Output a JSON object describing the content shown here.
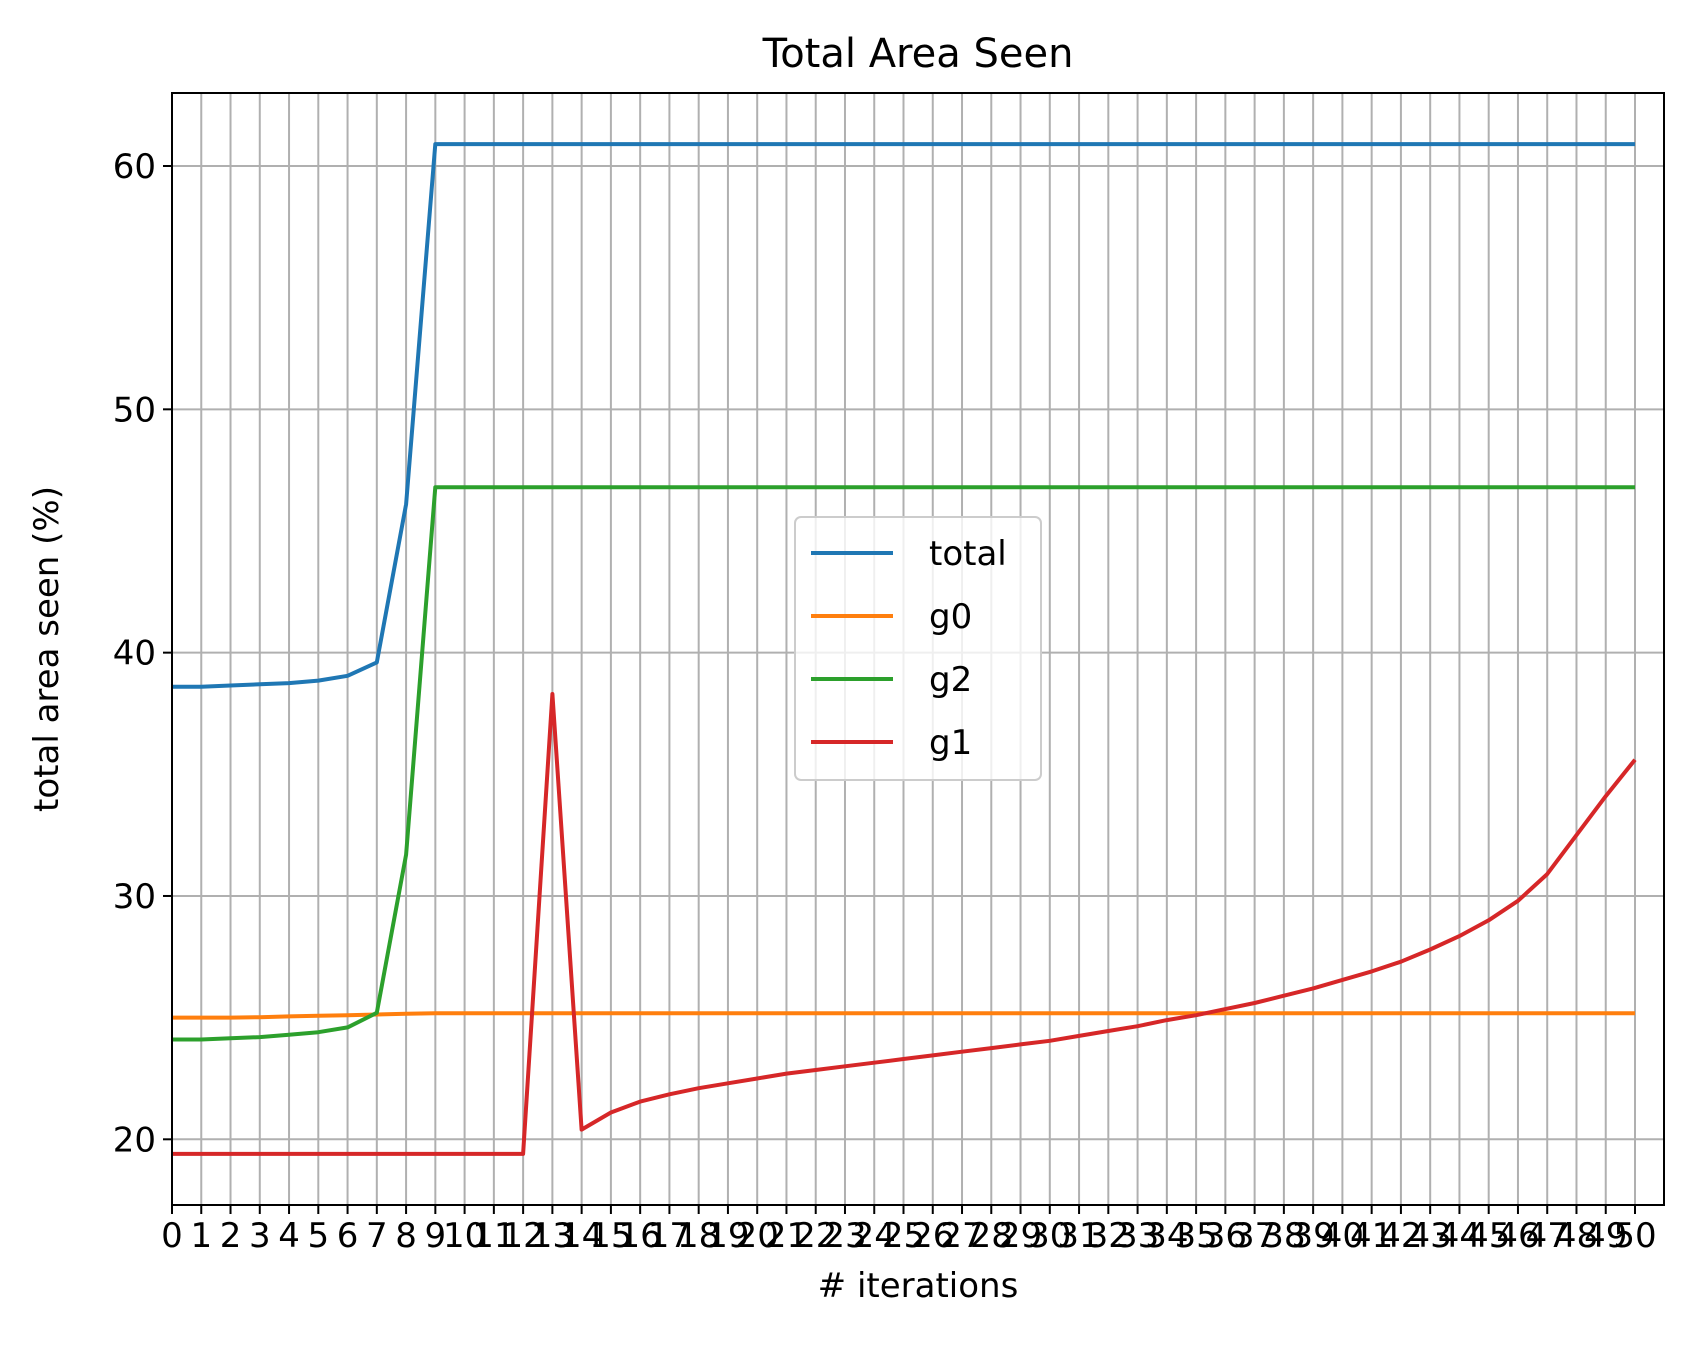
{
  "chart_data": {
    "type": "line",
    "title": "Total Area Seen",
    "xlabel": "# iterations",
    "ylabel": "total area seen (%)",
    "xlim": [
      0,
      50
    ],
    "ylim": [
      17.3,
      63
    ],
    "xticks": [
      0,
      1,
      2,
      3,
      4,
      5,
      6,
      7,
      8,
      9,
      10,
      11,
      12,
      13,
      14,
      15,
      16,
      17,
      18,
      19,
      20,
      21,
      22,
      23,
      24,
      25,
      26,
      27,
      28,
      29,
      30,
      31,
      32,
      33,
      34,
      35,
      36,
      37,
      38,
      39,
      40,
      41,
      42,
      43,
      44,
      45,
      46,
      47,
      48,
      49,
      50
    ],
    "yticks": [
      20,
      30,
      40,
      50,
      60
    ],
    "grid": true,
    "legend_position": "center",
    "x": [
      0,
      1,
      2,
      3,
      4,
      5,
      6,
      7,
      8,
      9,
      10,
      11,
      12,
      13,
      14,
      15,
      16,
      17,
      18,
      19,
      20,
      21,
      22,
      23,
      24,
      25,
      26,
      27,
      28,
      29,
      30,
      31,
      32,
      33,
      34,
      35,
      36,
      37,
      38,
      39,
      40,
      41,
      42,
      43,
      44,
      45,
      46,
      47,
      48,
      49,
      50
    ],
    "series": [
      {
        "name": "total",
        "color": "#1f77b4",
        "values": [
          38.6,
          38.6,
          38.65,
          38.7,
          38.75,
          38.85,
          39.05,
          39.6,
          46.1,
          60.9,
          60.9,
          60.9,
          60.9,
          60.9,
          60.9,
          60.9,
          60.9,
          60.9,
          60.9,
          60.9,
          60.9,
          60.9,
          60.9,
          60.9,
          60.9,
          60.9,
          60.9,
          60.9,
          60.9,
          60.9,
          60.9,
          60.9,
          60.9,
          60.9,
          60.9,
          60.9,
          60.9,
          60.9,
          60.9,
          60.9,
          60.9,
          60.9,
          60.9,
          60.9,
          60.9,
          60.9,
          60.9,
          60.9,
          60.9,
          60.9,
          60.9
        ]
      },
      {
        "name": "g0",
        "color": "#ff7f0e",
        "values": [
          25.0,
          25.0,
          25.0,
          25.02,
          25.05,
          25.08,
          25.1,
          25.13,
          25.16,
          25.18,
          25.18,
          25.18,
          25.18,
          25.18,
          25.18,
          25.18,
          25.18,
          25.18,
          25.18,
          25.18,
          25.18,
          25.18,
          25.18,
          25.18,
          25.18,
          25.18,
          25.18,
          25.18,
          25.18,
          25.18,
          25.18,
          25.18,
          25.18,
          25.18,
          25.18,
          25.18,
          25.18,
          25.18,
          25.18,
          25.18,
          25.18,
          25.18,
          25.18,
          25.18,
          25.18,
          25.18,
          25.18,
          25.18,
          25.18,
          25.18,
          25.18
        ]
      },
      {
        "name": "g2",
        "color": "#2ca02c",
        "values": [
          24.1,
          24.1,
          24.15,
          24.2,
          24.3,
          24.4,
          24.6,
          25.2,
          31.7,
          46.8,
          46.8,
          46.8,
          46.8,
          46.8,
          46.8,
          46.8,
          46.8,
          46.8,
          46.8,
          46.8,
          46.8,
          46.8,
          46.8,
          46.8,
          46.8,
          46.8,
          46.8,
          46.8,
          46.8,
          46.8,
          46.8,
          46.8,
          46.8,
          46.8,
          46.8,
          46.8,
          46.8,
          46.8,
          46.8,
          46.8,
          46.8,
          46.8,
          46.8,
          46.8,
          46.8,
          46.8,
          46.8,
          46.8,
          46.8,
          46.8,
          46.8
        ]
      },
      {
        "name": "g1",
        "color": "#d62728",
        "values": [
          19.4,
          19.4,
          19.4,
          19.4,
          19.4,
          19.4,
          19.4,
          19.4,
          19.4,
          19.4,
          19.4,
          19.4,
          19.4,
          38.3,
          20.4,
          21.1,
          21.55,
          21.85,
          22.1,
          22.3,
          22.5,
          22.7,
          22.85,
          23.0,
          23.15,
          23.3,
          23.45,
          23.6,
          23.75,
          23.9,
          24.05,
          24.25,
          24.45,
          24.65,
          24.9,
          25.1,
          25.35,
          25.6,
          25.9,
          26.2,
          26.55,
          26.9,
          27.3,
          27.8,
          28.35,
          29.0,
          29.8,
          30.9,
          32.5,
          34.1,
          35.6
        ]
      }
    ]
  }
}
